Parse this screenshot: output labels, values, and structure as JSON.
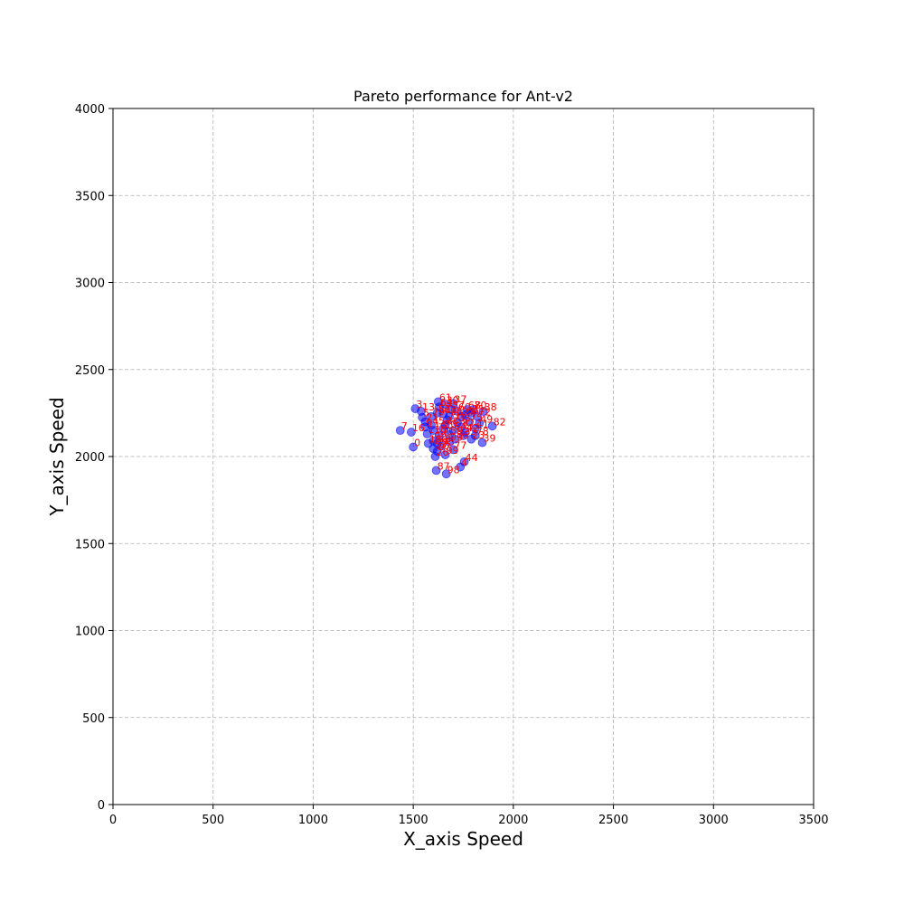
{
  "chart_data": {
    "type": "scatter",
    "title": "Pareto performance for Ant-v2",
    "xlabel": "X_axis Speed",
    "ylabel": "Y_axis Speed",
    "xlim": [
      0,
      3500
    ],
    "ylim": [
      0,
      4000
    ],
    "xticks": [
      0,
      500,
      1000,
      1500,
      2000,
      2500,
      3000,
      3500
    ],
    "yticks": [
      0,
      500,
      1000,
      1500,
      2000,
      2500,
      3000,
      3500,
      4000
    ],
    "grid": true,
    "colors": {
      "marker": "#0000ff",
      "label": "#ff0000"
    },
    "points": [
      {
        "label": "0",
        "x": 1500,
        "y": 2055
      },
      {
        "label": "3",
        "x": 1510,
        "y": 2275
      },
      {
        "label": "7",
        "x": 1435,
        "y": 2150
      },
      {
        "label": "16",
        "x": 1490,
        "y": 2140
      },
      {
        "label": "61",
        "x": 1625,
        "y": 2315
      },
      {
        "label": "30",
        "x": 1660,
        "y": 2300
      },
      {
        "label": "37",
        "x": 1700,
        "y": 2305
      },
      {
        "label": "38",
        "x": 1850,
        "y": 2260
      },
      {
        "label": "82",
        "x": 1895,
        "y": 2175
      },
      {
        "label": "39",
        "x": 1845,
        "y": 2080
      },
      {
        "label": "23",
        "x": 1790,
        "y": 2100
      },
      {
        "label": "77",
        "x": 1700,
        "y": 2040
      },
      {
        "label": "44",
        "x": 1755,
        "y": 1970
      },
      {
        "label": "4",
        "x": 1735,
        "y": 1940
      },
      {
        "label": "87",
        "x": 1615,
        "y": 1920
      },
      {
        "label": "98",
        "x": 1665,
        "y": 1900
      },
      {
        "label": "13",
        "x": 1540,
        "y": 2260
      },
      {
        "label": "21",
        "x": 1560,
        "y": 2200
      },
      {
        "label": "45",
        "x": 1590,
        "y": 2180
      },
      {
        "label": "52",
        "x": 1620,
        "y": 2250
      },
      {
        "label": "55",
        "x": 1680,
        "y": 2230
      },
      {
        "label": "60",
        "x": 1720,
        "y": 2260
      },
      {
        "label": "66",
        "x": 1760,
        "y": 2240
      },
      {
        "label": "70",
        "x": 1800,
        "y": 2270
      },
      {
        "label": "72",
        "x": 1820,
        "y": 2230
      },
      {
        "label": "75",
        "x": 1780,
        "y": 2200
      },
      {
        "label": "81",
        "x": 1740,
        "y": 2170
      },
      {
        "label": "84",
        "x": 1700,
        "y": 2150
      },
      {
        "label": "88",
        "x": 1660,
        "y": 2180
      },
      {
        "label": "90",
        "x": 1630,
        "y": 2120
      },
      {
        "label": "92",
        "x": 1600,
        "y": 2090
      },
      {
        "label": "95",
        "x": 1640,
        "y": 2060
      },
      {
        "label": "97",
        "x": 1620,
        "y": 2030
      },
      {
        "label": "99",
        "x": 1660,
        "y": 2010
      },
      {
        "label": "11",
        "x": 1570,
        "y": 2130
      },
      {
        "label": "18",
        "x": 1575,
        "y": 2075
      },
      {
        "label": "26",
        "x": 1610,
        "y": 2000
      },
      {
        "label": "33",
        "x": 1750,
        "y": 2120
      },
      {
        "label": "41",
        "x": 1810,
        "y": 2160
      },
      {
        "label": "49",
        "x": 1830,
        "y": 2190
      },
      {
        "label": "57",
        "x": 1690,
        "y": 2270
      },
      {
        "label": "63",
        "x": 1650,
        "y": 2245
      },
      {
        "label": "68",
        "x": 1770,
        "y": 2270
      },
      {
        "label": "79",
        "x": 1590,
        "y": 2230
      },
      {
        "label": "86",
        "x": 1710,
        "y": 2100
      },
      {
        "label": "93",
        "x": 1680,
        "y": 2085
      },
      {
        "label": "5",
        "x": 1545,
        "y": 2225
      },
      {
        "label": "9",
        "x": 1560,
        "y": 2170
      },
      {
        "label": "14",
        "x": 1600,
        "y": 2150
      },
      {
        "label": "20",
        "x": 1650,
        "y": 2160
      },
      {
        "label": "27",
        "x": 1740,
        "y": 2230
      },
      {
        "label": "31",
        "x": 1790,
        "y": 2250
      },
      {
        "label": "35",
        "x": 1720,
        "y": 2195
      },
      {
        "label": "42",
        "x": 1760,
        "y": 2140
      },
      {
        "label": "48",
        "x": 1620,
        "y": 2075
      },
      {
        "label": "53",
        "x": 1600,
        "y": 2045
      },
      {
        "label": "59",
        "x": 1680,
        "y": 2125
      },
      {
        "label": "64",
        "x": 1630,
        "y": 2285
      },
      {
        "label": "71",
        "x": 1670,
        "y": 2210
      },
      {
        "label": "78",
        "x": 1810,
        "y": 2120
      }
    ]
  }
}
